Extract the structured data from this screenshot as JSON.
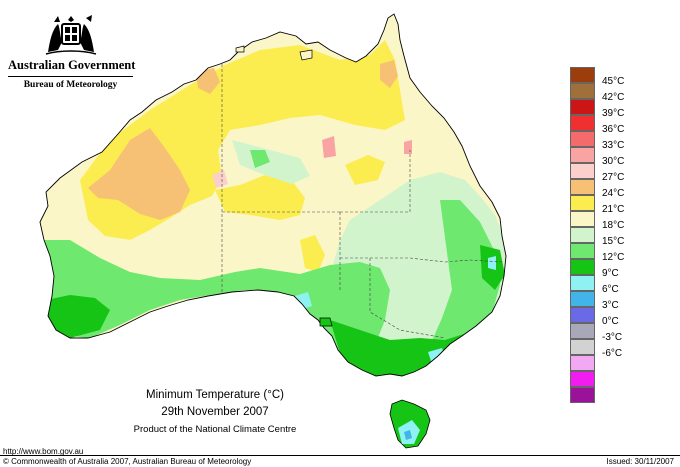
{
  "header": {
    "government": "Australian Government",
    "bureau": "Bureau of Meteorology"
  },
  "title": {
    "line1": "Minimum Temperature (°C)",
    "line2": "29th November 2007",
    "line3": "Product of the National Climate Centre"
  },
  "footer": {
    "url": "http://www.bom.gov.au",
    "copyright": "© Commonwealth of Australia 2007, Australian Bureau of Meteorology",
    "issued": "Issued: 30/11/2007"
  },
  "legend": [
    {
      "label": "",
      "color": "#9c3d0c"
    },
    {
      "label": "45°C",
      "color": "#a0703a"
    },
    {
      "label": "42°C",
      "color": "#cc1616"
    },
    {
      "label": "39°C",
      "color": "#f03030"
    },
    {
      "label": "36°C",
      "color": "#f56a6a"
    },
    {
      "label": "33°C",
      "color": "#f9a3a3"
    },
    {
      "label": "30°C",
      "color": "#fbd0cc"
    },
    {
      "label": "27°C",
      "color": "#f6c174"
    },
    {
      "label": "24°C",
      "color": "#fbed4f"
    },
    {
      "label": "21°C",
      "color": "#fbf6c8"
    },
    {
      "label": "18°C",
      "color": "#d2f4cc"
    },
    {
      "label": "15°C",
      "color": "#6ee86e"
    },
    {
      "label": "12°C",
      "color": "#16c416"
    },
    {
      "label": "9°C",
      "color": "#8ef2f2"
    },
    {
      "label": "6°C",
      "color": "#41b4ea"
    },
    {
      "label": "3°C",
      "color": "#6a6ae6"
    },
    {
      "label": "0°C",
      "color": "#a8a8b8"
    },
    {
      "label": "-3°C",
      "color": "#d2d2d2"
    },
    {
      "label": "-6°C",
      "color": "#f2a8f2"
    },
    {
      "label": "",
      "color": "#f01cf0"
    },
    {
      "label": "",
      "color": "#9a129a"
    }
  ],
  "colors": {
    "ocean": "#ffffff",
    "c27": "#f6c174",
    "c24": "#fbed4f",
    "c21": "#fbf6c8",
    "c18": "#d2f4cc",
    "c15": "#6ee86e",
    "c12": "#16c416",
    "c9": "#8ef2f2",
    "c6": "#41b4ea",
    "c30": "#fbd0cc",
    "c33": "#f9a3a3"
  }
}
